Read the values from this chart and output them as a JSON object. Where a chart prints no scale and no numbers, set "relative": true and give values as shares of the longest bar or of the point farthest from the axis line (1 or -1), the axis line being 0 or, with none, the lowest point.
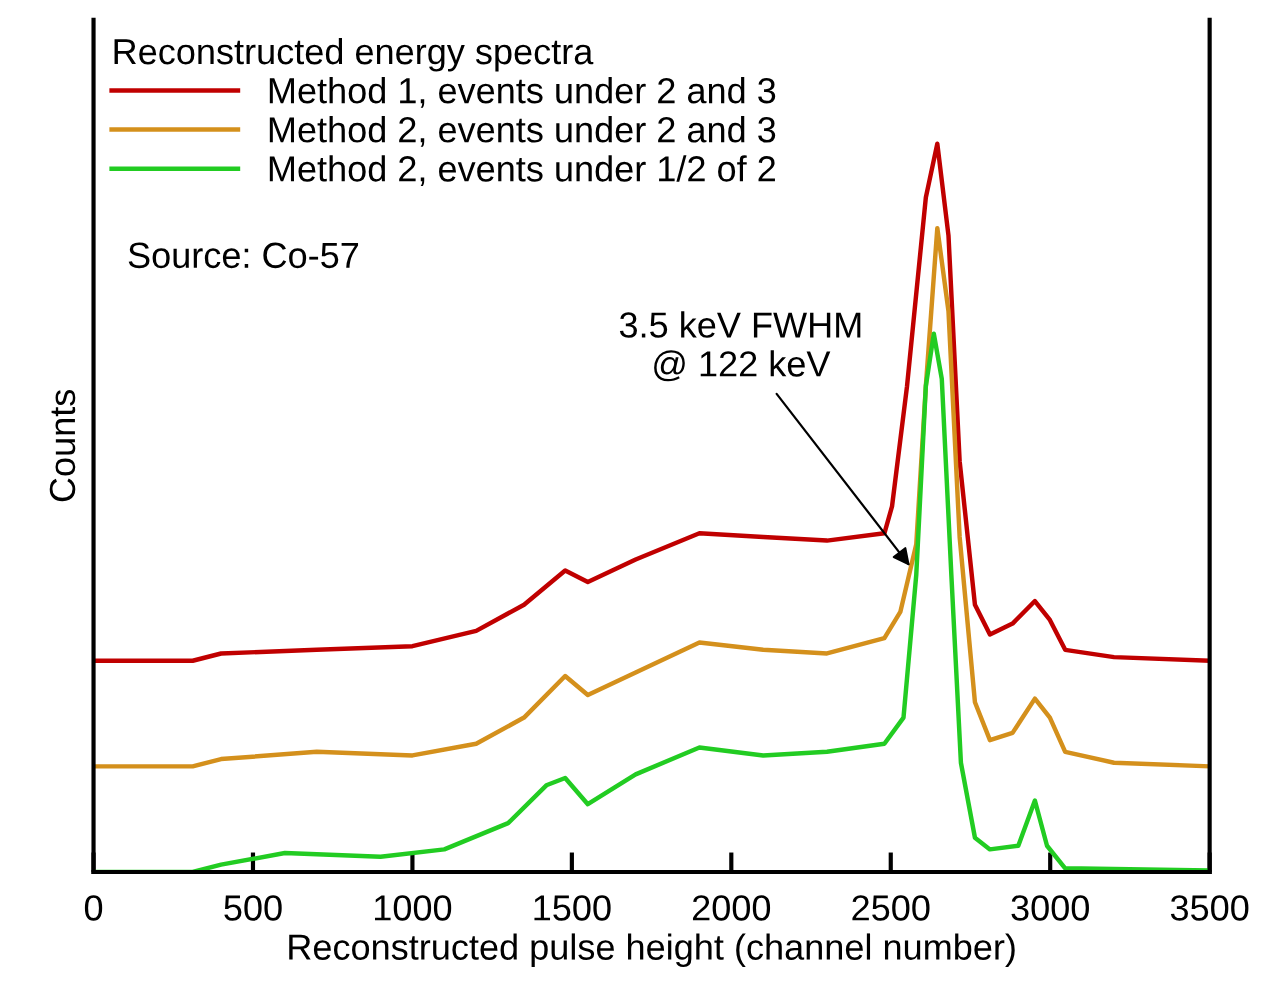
{
  "chart_data": {
    "type": "line",
    "relative": true,
    "xlabel": "Reconstructed pulse height (channel number)",
    "ylabel": "Counts",
    "legend_title": "Reconstructed energy spectra",
    "legend": "top left",
    "grid": false,
    "marker": "none",
    "line_style": "solid",
    "xlim": [
      0,
      3500
    ],
    "xticks": [
      0,
      500,
      1000,
      1500,
      2000,
      2500,
      3000,
      3500
    ],
    "annotations": [
      "Source: Co-57",
      {
        "text": "3.5 keV FWHM\n@ 122 keV",
        "x": 2560,
        "y": 0.42
      }
    ],
    "series": [
      {
        "name": "Method 1, events under 2 and 3",
        "color": "#c00000",
        "x": [
          0,
          311,
          400,
          700,
          1000,
          1200,
          1350,
          1479,
          1550,
          1700,
          1900,
          2100,
          2300,
          2480,
          2504,
          2551,
          2610,
          2646,
          2681,
          2716,
          2764,
          2811,
          2882,
          2952,
          2999,
          3047,
          3200,
          3500
        ],
        "values": [
          0.29,
          0.29,
          0.3,
          0.305,
          0.31,
          0.331,
          0.367,
          0.414,
          0.398,
          0.429,
          0.465,
          0.46,
          0.455,
          0.465,
          0.502,
          0.667,
          0.926,
          1.0,
          0.874,
          0.564,
          0.367,
          0.326,
          0.341,
          0.372,
          0.346,
          0.305,
          0.295,
          0.29
        ]
      },
      {
        "name": "Method 2, events under 2 and 3",
        "color": "#d4901c",
        "x": [
          0,
          311,
          400,
          700,
          1000,
          1200,
          1350,
          1479,
          1550,
          1700,
          1900,
          2100,
          2300,
          2480,
          2530,
          2580,
          2610,
          2646,
          2681,
          2716,
          2764,
          2811,
          2882,
          2952,
          2999,
          3047,
          3200,
          3500
        ],
        "values": [
          0.145,
          0.145,
          0.155,
          0.165,
          0.16,
          0.176,
          0.212,
          0.269,
          0.243,
          0.274,
          0.315,
          0.305,
          0.3,
          0.321,
          0.357,
          0.45,
          0.667,
          0.884,
          0.77,
          0.46,
          0.233,
          0.181,
          0.191,
          0.238,
          0.212,
          0.165,
          0.15,
          0.145
        ]
      },
      {
        "name": "Method 2, events under 1/2 of 2",
        "color": "#22cc22",
        "x": [
          0,
          311,
          400,
          600,
          900,
          1100,
          1300,
          1420,
          1479,
          1550,
          1700,
          1900,
          2100,
          2300,
          2480,
          2540,
          2580,
          2610,
          2635,
          2660,
          2690,
          2720,
          2764,
          2811,
          2900,
          2952,
          2990,
          3047,
          3500
        ],
        "values": [
          0,
          0,
          0.01,
          0.026,
          0.021,
          0.031,
          0.067,
          0.119,
          0.129,
          0.093,
          0.134,
          0.171,
          0.16,
          0.165,
          0.176,
          0.212,
          0.408,
          0.667,
          0.739,
          0.677,
          0.408,
          0.15,
          0.047,
          0.031,
          0.036,
          0.098,
          0.036,
          0.005,
          0.002
        ]
      }
    ]
  }
}
